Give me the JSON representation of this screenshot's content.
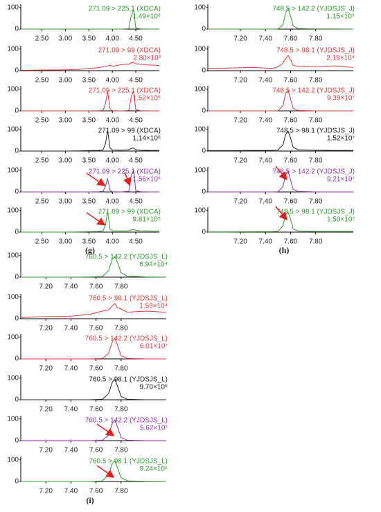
{
  "panel_labels": [
    "(g)",
    "(h)",
    "(i)"
  ],
  "chart_data": [
    {
      "type": "line",
      "title": "271.09 > 225.1 (XDCA)",
      "subtitle": "1.49×10⁶",
      "color": "#2e9a2e",
      "x": [
        2.05,
        2.5,
        3.0,
        3.3,
        3.5,
        3.7,
        3.8,
        3.85,
        3.9,
        3.95,
        4.0,
        4.2,
        4.35,
        4.4,
        4.45,
        4.5,
        4.6,
        4.8,
        5.0
      ],
      "values": [
        0,
        0,
        0,
        0,
        0,
        0,
        0,
        0,
        0,
        0,
        0,
        0,
        2,
        60,
        90,
        5,
        1,
        0,
        0
      ],
      "xlim": [
        2.05,
        5.0
      ],
      "ylim": [
        0,
        115
      ],
      "xticks": [
        {
          "value": 2.5,
          "label": "2.50"
        },
        {
          "value": 3.0,
          "label": "3.00"
        },
        {
          "value": 3.5,
          "label": "3.50"
        },
        {
          "value": 4.0,
          "label": "4.00"
        },
        {
          "value": 4.5,
          "label": "4.50"
        }
      ],
      "yticks": [
        0,
        100
      ]
    },
    {
      "type": "line",
      "title": "271.09 > 99 (XDCA)",
      "subtitle": "2.80×10³",
      "color": "#d83a3a",
      "x": [
        2.05,
        2.5,
        3.0,
        3.3,
        3.5,
        3.7,
        3.8,
        3.85,
        3.9,
        3.95,
        4.0,
        4.2,
        4.35,
        4.4,
        4.45,
        4.5,
        4.6,
        4.8,
        5.0
      ],
      "values": [
        2,
        3,
        4,
        6,
        10,
        14,
        18,
        20,
        22,
        25,
        20,
        28,
        30,
        35,
        40,
        32,
        30,
        26,
        24
      ],
      "xlim": [
        2.05,
        5.0
      ],
      "ylim": [
        0,
        115
      ],
      "xticks": [
        {
          "value": 2.5,
          "label": "2.50"
        },
        {
          "value": 3.0,
          "label": "3.00"
        },
        {
          "value": 3.5,
          "label": "3.50"
        },
        {
          "value": 4.0,
          "label": "4.00"
        },
        {
          "value": 4.5,
          "label": "4.50"
        }
      ],
      "yticks": [
        0,
        100
      ]
    },
    {
      "type": "line",
      "title": "271.09 > 225.1 (XDCA)",
      "subtitle": "1.52×10⁶",
      "color": "#d83a3a",
      "x": [
        2.05,
        2.5,
        3.0,
        3.3,
        3.5,
        3.7,
        3.8,
        3.85,
        3.9,
        3.95,
        4.0,
        4.2,
        4.35,
        4.4,
        4.45,
        4.5,
        4.6,
        4.8,
        5.0
      ],
      "values": [
        0,
        0,
        0,
        0,
        0,
        1,
        2,
        30,
        90,
        10,
        1,
        0,
        2,
        60,
        92,
        5,
        1,
        0,
        0
      ],
      "xlim": [
        2.05,
        5.0
      ],
      "ylim": [
        0,
        115
      ],
      "xticks": [
        {
          "value": 2.5,
          "label": "2.50"
        },
        {
          "value": 3.0,
          "label": "3.00"
        },
        {
          "value": 3.5,
          "label": "3.50"
        },
        {
          "value": 4.0,
          "label": "4.00"
        },
        {
          "value": 4.5,
          "label": "4.50"
        }
      ],
      "yticks": [
        0,
        100
      ]
    },
    {
      "type": "line",
      "title": "271.09 > 99 (XDCA)",
      "subtitle": "1.14×10⁶",
      "color": "#222222",
      "x": [
        2.05,
        2.5,
        3.0,
        3.3,
        3.5,
        3.7,
        3.8,
        3.85,
        3.9,
        3.95,
        4.0,
        4.2,
        4.35,
        4.4,
        4.45,
        4.5,
        4.6,
        4.8,
        5.0
      ],
      "values": [
        0,
        0,
        0,
        1,
        2,
        3,
        5,
        30,
        95,
        15,
        5,
        4,
        6,
        12,
        14,
        6,
        4,
        3,
        3
      ],
      "xlim": [
        2.05,
        5.0
      ],
      "ylim": [
        0,
        115
      ],
      "xticks": [
        {
          "value": 2.5,
          "label": "2.50"
        },
        {
          "value": 3.0,
          "label": "3.00"
        },
        {
          "value": 3.5,
          "label": "3.50"
        },
        {
          "value": 4.0,
          "label": "4.00"
        },
        {
          "value": 4.5,
          "label": "4.50"
        }
      ],
      "yticks": [
        0,
        100
      ]
    },
    {
      "type": "line",
      "title": "271.09 > 225.1 (XDCA)",
      "subtitle": "1.56×10⁶",
      "color": "#8e2fa0",
      "x": [
        2.05,
        2.5,
        3.0,
        3.3,
        3.5,
        3.7,
        3.8,
        3.85,
        3.9,
        3.95,
        4.0,
        4.2,
        4.35,
        4.4,
        4.45,
        4.5,
        4.6,
        4.8,
        5.0
      ],
      "values": [
        0,
        0,
        0,
        0,
        0,
        1,
        2,
        25,
        60,
        8,
        1,
        0,
        3,
        70,
        100,
        5,
        1,
        0,
        0
      ],
      "xlim": [
        2.05,
        5.0
      ],
      "ylim": [
        0,
        115
      ],
      "xticks": [
        {
          "value": 2.5,
          "label": "2.50"
        },
        {
          "value": 3.0,
          "label": "3.00"
        },
        {
          "value": 3.5,
          "label": "3.50"
        },
        {
          "value": 4.0,
          "label": "4.00"
        },
        {
          "value": 4.5,
          "label": "4.50"
        }
      ],
      "yticks": [
        0,
        100
      ]
    },
    {
      "type": "line",
      "title": "271.09 > 99 (XDCA)",
      "subtitle": "9.81×10⁵",
      "color": "#2e9a2e",
      "x": [
        2.05,
        2.5,
        3.0,
        3.3,
        3.5,
        3.7,
        3.8,
        3.85,
        3.9,
        3.95,
        4.0,
        4.2,
        4.35,
        4.4,
        4.45,
        4.5,
        4.6,
        4.8,
        5.0
      ],
      "values": [
        0,
        0,
        0,
        1,
        2,
        3,
        5,
        30,
        95,
        15,
        6,
        5,
        6,
        10,
        12,
        8,
        6,
        5,
        5
      ],
      "xlim": [
        2.05,
        5.0
      ],
      "ylim": [
        0,
        115
      ],
      "xticks": [
        {
          "value": 2.5,
          "label": "2.50"
        },
        {
          "value": 3.0,
          "label": "3.00"
        },
        {
          "value": 3.5,
          "label": "3.50"
        },
        {
          "value": 4.0,
          "label": "4.00"
        },
        {
          "value": 4.5,
          "label": "4.50"
        }
      ],
      "yticks": [
        0,
        100
      ]
    },
    {
      "type": "line",
      "title": "748.5 > 142.2 (YJDSJS_J)",
      "subtitle": "1.15×10⁵",
      "color": "#2e9a2e",
      "x": [
        6.94,
        7.1,
        7.3,
        7.45,
        7.5,
        7.54,
        7.56,
        7.58,
        7.6,
        7.62,
        7.66,
        7.8,
        7.95,
        8.1
      ],
      "values": [
        0,
        0,
        0,
        0,
        1,
        20,
        75,
        95,
        60,
        15,
        3,
        1,
        1,
        0
      ],
      "xlim": [
        6.94,
        8.1
      ],
      "ylim": [
        0,
        115
      ],
      "xticks": [
        {
          "value": 7.2,
          "label": "7.20"
        },
        {
          "value": 7.4,
          "label": "7.40"
        },
        {
          "value": 7.6,
          "label": "7.60"
        },
        {
          "value": 7.8,
          "label": "7.80"
        }
      ],
      "yticks": [
        0,
        100
      ]
    },
    {
      "type": "line",
      "title": "748.5 > 98.1 (YJDSJS_J)",
      "subtitle": "2.19×10⁴",
      "color": "#d83a3a",
      "x": [
        6.94,
        7.1,
        7.3,
        7.45,
        7.5,
        7.54,
        7.56,
        7.58,
        7.6,
        7.62,
        7.66,
        7.8,
        7.95,
        8.1
      ],
      "values": [
        10,
        12,
        15,
        10,
        18,
        35,
        55,
        70,
        50,
        25,
        20,
        18,
        22,
        15
      ],
      "xlim": [
        6.94,
        8.1
      ],
      "ylim": [
        0,
        115
      ],
      "xticks": [
        {
          "value": 7.2,
          "label": "7.20"
        },
        {
          "value": 7.4,
          "label": "7.40"
        },
        {
          "value": 7.6,
          "label": "7.60"
        },
        {
          "value": 7.8,
          "label": "7.80"
        }
      ],
      "yticks": [
        0,
        100
      ]
    },
    {
      "type": "line",
      "title": "748.5 > 142.2 (YJDSJS_J)",
      "subtitle": "9.39×10⁷",
      "color": "#d83a3a",
      "x": [
        6.94,
        7.1,
        7.3,
        7.45,
        7.5,
        7.54,
        7.56,
        7.58,
        7.6,
        7.62,
        7.66,
        7.8,
        7.95,
        8.1
      ],
      "values": [
        0,
        0,
        0,
        0,
        1,
        25,
        80,
        95,
        55,
        12,
        2,
        0,
        0,
        0
      ],
      "xlim": [
        6.94,
        8.1
      ],
      "ylim": [
        0,
        115
      ],
      "xticks": [
        {
          "value": 7.2,
          "label": "7.20"
        },
        {
          "value": 7.4,
          "label": "7.40"
        },
        {
          "value": 7.6,
          "label": "7.60"
        },
        {
          "value": 7.8,
          "label": "7.80"
        }
      ],
      "yticks": [
        0,
        100
      ]
    },
    {
      "type": "line",
      "title": "748.5 > 98.1 (YJDSJS_J)",
      "subtitle": "1.52×10⁷",
      "color": "#222222",
      "x": [
        6.94,
        7.1,
        7.3,
        7.45,
        7.5,
        7.54,
        7.56,
        7.58,
        7.6,
        7.62,
        7.66,
        7.8,
        7.95,
        8.1
      ],
      "values": [
        2,
        2,
        3,
        3,
        5,
        30,
        75,
        90,
        60,
        18,
        6,
        4,
        3,
        3
      ],
      "xlim": [
        6.94,
        8.1
      ],
      "ylim": [
        0,
        115
      ],
      "xticks": [
        {
          "value": 7.2,
          "label": "7.20"
        },
        {
          "value": 7.4,
          "label": "7.40"
        },
        {
          "value": 7.6,
          "label": "7.60"
        },
        {
          "value": 7.8,
          "label": "7.80"
        }
      ],
      "yticks": [
        0,
        100
      ]
    },
    {
      "type": "line",
      "title": "748.5 > 142.2 (YJDSJS_J)",
      "subtitle": "9.21×10⁷",
      "color": "#8e2fa0",
      "x": [
        6.94,
        7.1,
        7.3,
        7.45,
        7.5,
        7.54,
        7.56,
        7.58,
        7.6,
        7.62,
        7.66,
        7.8,
        7.95,
        8.1
      ],
      "values": [
        0,
        0,
        0,
        0,
        1,
        25,
        80,
        95,
        55,
        12,
        2,
        0,
        0,
        0
      ],
      "xlim": [
        6.94,
        8.1
      ],
      "ylim": [
        0,
        115
      ],
      "xticks": [
        {
          "value": 7.2,
          "label": "7.20"
        },
        {
          "value": 7.4,
          "label": "7.40"
        },
        {
          "value": 7.6,
          "label": "7.60"
        },
        {
          "value": 7.8,
          "label": "7.80"
        }
      ],
      "yticks": [
        0,
        100
      ]
    },
    {
      "type": "line",
      "title": "748.5 > 98.1 (YJDSJS_J)",
      "subtitle": "1.50×10⁷",
      "color": "#2e9a2e",
      "x": [
        6.94,
        7.1,
        7.3,
        7.45,
        7.5,
        7.54,
        7.56,
        7.58,
        7.6,
        7.62,
        7.66,
        7.8,
        7.95,
        8.1
      ],
      "values": [
        1,
        1,
        2,
        2,
        4,
        30,
        80,
        92,
        60,
        15,
        5,
        3,
        3,
        3
      ],
      "xlim": [
        6.94,
        8.1
      ],
      "ylim": [
        0,
        115
      ],
      "xticks": [
        {
          "value": 7.2,
          "label": "7.20"
        },
        {
          "value": 7.4,
          "label": "7.40"
        },
        {
          "value": 7.6,
          "label": "7.60"
        },
        {
          "value": 7.8,
          "label": "7.80"
        }
      ],
      "yticks": [
        0,
        100
      ]
    },
    {
      "type": "line",
      "title": "760.5 > 142.2 (YJDSJS_L)",
      "subtitle": "6.94×10⁴",
      "color": "#2e9a2e",
      "x": [
        7.0,
        7.2,
        7.4,
        7.55,
        7.65,
        7.7,
        7.73,
        7.75,
        7.77,
        7.8,
        7.85,
        8.0,
        8.16
      ],
      "values": [
        0,
        0,
        0,
        1,
        3,
        30,
        85,
        95,
        70,
        20,
        5,
        1,
        0
      ],
      "xlim": [
        7.0,
        8.16
      ],
      "ylim": [
        0,
        115
      ],
      "xticks": [
        {
          "value": 7.2,
          "label": "7.20"
        },
        {
          "value": 7.4,
          "label": "7.40"
        },
        {
          "value": 7.6,
          "label": "7.60"
        },
        {
          "value": 7.8,
          "label": "7.80"
        }
      ],
      "yticks": [
        0,
        100
      ]
    },
    {
      "type": "line",
      "title": "760.5 > 98.1 (YJDSJS_L)",
      "subtitle": "1.59×10⁴",
      "color": "#d83a3a",
      "x": [
        7.0,
        7.2,
        7.4,
        7.55,
        7.65,
        7.7,
        7.73,
        7.75,
        7.77,
        7.8,
        7.85,
        8.0,
        8.16
      ],
      "values": [
        5,
        10,
        12,
        20,
        35,
        40,
        60,
        70,
        50,
        45,
        30,
        35,
        30
      ],
      "xlim": [
        7.0,
        8.16
      ],
      "ylim": [
        0,
        115
      ],
      "xticks": [
        {
          "value": 7.2,
          "label": "7.20"
        },
        {
          "value": 7.4,
          "label": "7.40"
        },
        {
          "value": 7.6,
          "label": "7.60"
        },
        {
          "value": 7.8,
          "label": "7.80"
        }
      ],
      "yticks": [
        0,
        100
      ]
    },
    {
      "type": "line",
      "title": "760.5 > 142.2 (YJDSJS_L)",
      "subtitle": "6.01×10⁷",
      "color": "#d83a3a",
      "x": [
        7.0,
        7.2,
        7.4,
        7.55,
        7.65,
        7.7,
        7.73,
        7.75,
        7.77,
        7.8,
        7.85,
        8.0,
        8.16
      ],
      "values": [
        0,
        0,
        0,
        0,
        2,
        25,
        80,
        95,
        65,
        15,
        2,
        0,
        0
      ],
      "xlim": [
        7.0,
        8.16
      ],
      "ylim": [
        0,
        115
      ],
      "xticks": [
        {
          "value": 7.2,
          "label": "7.20"
        },
        {
          "value": 7.4,
          "label": "7.40"
        },
        {
          "value": 7.6,
          "label": "7.60"
        },
        {
          "value": 7.8,
          "label": "7.80"
        }
      ],
      "yticks": [
        0,
        100
      ]
    },
    {
      "type": "line",
      "title": "760.5 > 98.1 (YJDSJS_L)",
      "subtitle": "9.70×10⁶",
      "color": "#222222",
      "x": [
        7.0,
        7.2,
        7.4,
        7.55,
        7.65,
        7.7,
        7.73,
        7.75,
        7.77,
        7.8,
        7.85,
        8.0,
        8.16
      ],
      "values": [
        0,
        0,
        0,
        0,
        2,
        28,
        82,
        95,
        65,
        15,
        2,
        0,
        0
      ],
      "xlim": [
        7.0,
        8.16
      ],
      "ylim": [
        0,
        115
      ],
      "xticks": [
        {
          "value": 7.2,
          "label": "7.20"
        },
        {
          "value": 7.4,
          "label": "7.40"
        },
        {
          "value": 7.6,
          "label": "7.60"
        },
        {
          "value": 7.8,
          "label": "7.80"
        }
      ],
      "yticks": [
        0,
        100
      ]
    },
    {
      "type": "line",
      "title": "760.5 > 142.2 (YJDSJS_L)",
      "subtitle": "5.62×10⁷",
      "color": "#8e2fa0",
      "x": [
        7.0,
        7.2,
        7.4,
        7.55,
        7.65,
        7.7,
        7.73,
        7.75,
        7.77,
        7.8,
        7.85,
        8.0,
        8.16
      ],
      "values": [
        0,
        0,
        0,
        0,
        2,
        25,
        80,
        95,
        65,
        15,
        2,
        0,
        0
      ],
      "xlim": [
        7.0,
        8.16
      ],
      "ylim": [
        0,
        115
      ],
      "xticks": [
        {
          "value": 7.2,
          "label": "7.20"
        },
        {
          "value": 7.4,
          "label": "7.40"
        },
        {
          "value": 7.6,
          "label": "7.60"
        },
        {
          "value": 7.8,
          "label": "7.80"
        }
      ],
      "yticks": [
        0,
        100
      ]
    },
    {
      "type": "line",
      "title": "760.5 > 98.1 (YJDSJS_L)",
      "subtitle": "9.24×10⁶",
      "color": "#2e9a2e",
      "x": [
        7.0,
        7.2,
        7.4,
        7.55,
        7.65,
        7.7,
        7.73,
        7.75,
        7.77,
        7.8,
        7.85,
        8.0,
        8.16
      ],
      "values": [
        0,
        0,
        0,
        0,
        3,
        30,
        85,
        95,
        65,
        18,
        3,
        1,
        0
      ],
      "xlim": [
        7.0,
        8.16
      ],
      "ylim": [
        0,
        115
      ],
      "xticks": [
        {
          "value": 7.2,
          "label": "7.20"
        },
        {
          "value": 7.4,
          "label": "7.40"
        },
        {
          "value": 7.6,
          "label": "7.60"
        },
        {
          "value": 7.8,
          "label": "7.80"
        }
      ],
      "yticks": [
        0,
        100
      ]
    }
  ]
}
